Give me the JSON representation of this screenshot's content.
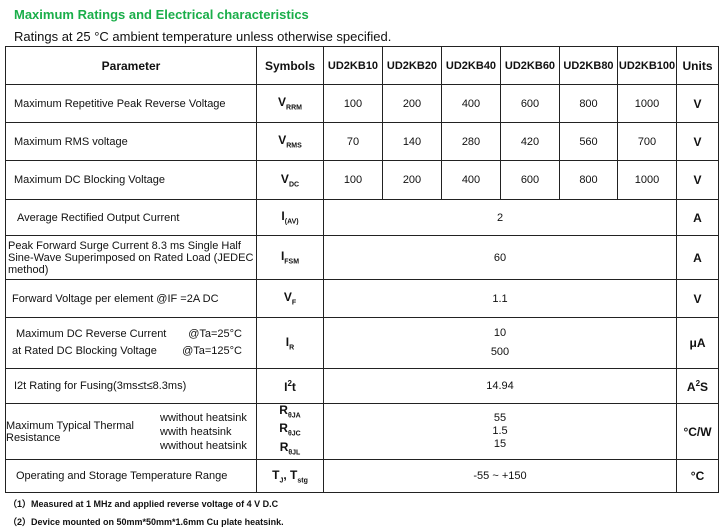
{
  "title": "Maximum Ratings and Electrical characteristics",
  "subtitle": "Ratings at 25 °C ambient temperature unless otherwise specified.",
  "header": {
    "parameter": "Parameter",
    "symbols": "Symbols",
    "models": [
      "UD2KB10",
      "UD2KB20",
      "UD2KB40",
      "UD2KB60",
      "UD2KB80",
      "UD2KB100"
    ],
    "units": "Units"
  },
  "rows": {
    "vrrm": {
      "param": "Maximum Repetitive Peak Reverse Voltage",
      "sym": "V",
      "sub": "RRM",
      "values": [
        "100",
        "200",
        "400",
        "600",
        "800",
        "1000"
      ],
      "unit": "V"
    },
    "vrms": {
      "param": "Maximum RMS voltage",
      "sym": "V",
      "sub": "RMS",
      "values": [
        "70",
        "140",
        "280",
        "420",
        "560",
        "700"
      ],
      "unit": "V"
    },
    "vdc": {
      "param": "Maximum DC Blocking Voltage",
      "sym": "V",
      "sub": "DC",
      "values": [
        "100",
        "200",
        "400",
        "600",
        "800",
        "1000"
      ],
      "unit": "V"
    },
    "iav": {
      "param": "Average Rectified Output Current",
      "sym": "I",
      "sub": "(AV)",
      "value": "2",
      "unit": "A"
    },
    "ifsm": {
      "param": "Peak Forward Surge Current 8.3 ms Single Half Sine-Wave Superimposed on Rated Load (JEDEC method)",
      "sym": "I",
      "sub": "FSM",
      "value": "60",
      "unit": "A"
    },
    "vf": {
      "param": "Forward Voltage per element  @IF =2A DC",
      "sym": "V",
      "sub": "F",
      "value": "1.1",
      "unit": "V"
    },
    "ir": {
      "param1": "Maximum DC Reverse Current",
      "param2": "at Rated DC Blocking Voltage",
      "cond1": "@Ta=25°C",
      "cond2": "@Ta=125°C",
      "sym": "I",
      "sub": "R",
      "value1": "10",
      "value2": "500",
      "unit": "μA"
    },
    "i2t": {
      "param": "I2t Rating for Fusing(3ms≤t≤8.3ms)",
      "sym": "I",
      "sup": "2",
      "sym2": "t",
      "value": "14.94",
      "unit": "A",
      "unit_sup": "2",
      "unit2": "S"
    },
    "thermal": {
      "param": "Maximum Typical Thermal Resistance",
      "conds": [
        "wwithout  heatsink",
        "wwith  heatsink",
        "wwithout  heatsink"
      ],
      "syms": [
        {
          "s": "R",
          "sub": "θJA"
        },
        {
          "s": "R",
          "sub": "θJC"
        },
        {
          "s": "R",
          "sub": "θJL"
        }
      ],
      "values": [
        "55",
        "1.5",
        "15"
      ],
      "unit": "°C/W"
    },
    "temp": {
      "param": "Operating and Storage Temperature Range",
      "sym": "T",
      "sub": "J",
      "sym2": ", T",
      "sub2": "stg",
      "value": "-55 ~ +150",
      "unit": "°C"
    }
  },
  "footnotes": [
    "（1）Measured at 1 MHz and applied reverse voltage of 4 V D.C",
    "（2）Device mounted on 50mm*50mm*1.6mm Cu plate heatsink."
  ]
}
